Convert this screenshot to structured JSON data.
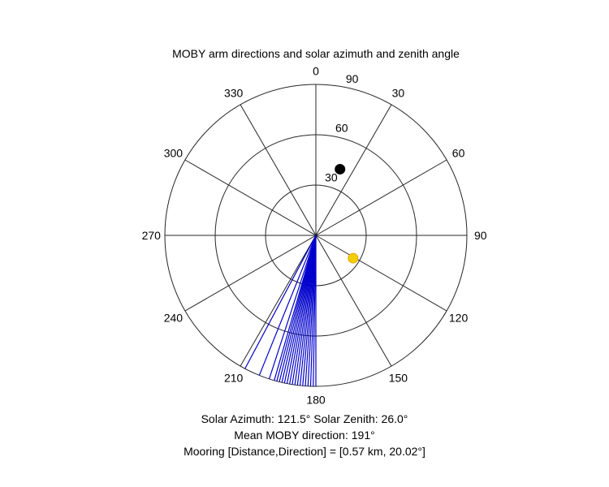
{
  "chart_data": {
    "type": "polar-scatter",
    "title": "MOBY arm directions and solar azimuth and zenith angle",
    "angle_ticks": [
      "0",
      "30",
      "60",
      "90",
      "120",
      "150",
      "180",
      "210",
      "240",
      "270",
      "300",
      "330"
    ],
    "angle_tick_values": [
      0,
      30,
      60,
      90,
      120,
      150,
      180,
      210,
      240,
      270,
      300,
      330
    ],
    "radial_ticks": [
      "30",
      "60",
      "90"
    ],
    "radial_tick_values": [
      30,
      60,
      90
    ],
    "rlim": [
      0,
      90
    ],
    "direction": "clockwise from north",
    "grid": true,
    "series": [
      {
        "color": "#0000cc",
        "kind": "rays",
        "angles": [
          180,
          181,
          182,
          183,
          184,
          185,
          186,
          187,
          188,
          189,
          190,
          191,
          192,
          193,
          194,
          195,
          196,
          198,
          202,
          208
        ],
        "r": [
          90,
          90,
          90,
          90,
          90,
          90,
          90,
          90,
          90,
          90,
          90,
          90,
          90,
          90,
          90,
          90,
          90,
          90,
          90,
          90
        ]
      },
      {
        "color": "#f0d000",
        "edge_color": "#f0a000",
        "kind": "marker",
        "angle": 121.5,
        "r": 26.0
      },
      {
        "color": "#000000",
        "kind": "marker",
        "angle": 20.02,
        "r": 42
      }
    ]
  },
  "captions": {
    "solar": "Solar Azimuth: 121.5°    Solar Zenith: 26.0°",
    "moby": "Mean MOBY direction: 191°",
    "mooring": "Mooring [Distance,Direction] = [0.57 km, 20.02°]"
  }
}
